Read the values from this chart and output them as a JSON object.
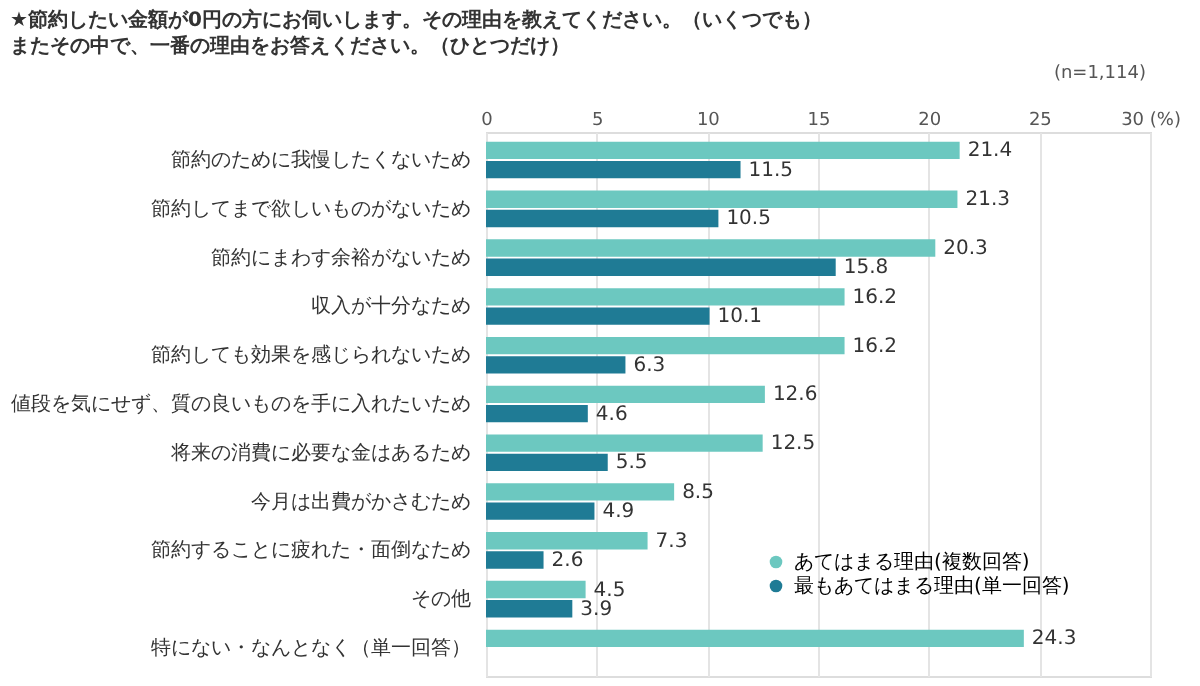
{
  "chart_data": {
    "type": "bar",
    "orientation": "horizontal",
    "title": "★節約したい金額が0円の方にお伺いします。その理由を教えてください。（いくつでも）",
    "subtitle": "またその中で、一番の理由をお答えください。（ひとつだけ）",
    "annotations": [
      "(n=1,114)"
    ],
    "categories": [
      "節約のために我慢したくないため",
      "節約してまで欲しいものがないため",
      "節約にまわす余裕がないため",
      "収入が十分なため",
      "節約しても効果を感じられないため",
      "値段を気にせず、質の良いものを手に入れたいため",
      "将来の消費に必要な金はあるため",
      "今月は出費がかさむため",
      "節約することに疲れた・面倒なため",
      "その他",
      "特にない・なんとなく（単一回答）"
    ],
    "series": [
      {
        "name": "あてはまる理由(複数回答)",
        "color": "#6cc8c0",
        "values": [
          21.4,
          21.3,
          20.3,
          16.2,
          16.2,
          12.6,
          12.5,
          8.5,
          7.3,
          4.5,
          24.3
        ]
      },
      {
        "name": "最もあてはまる理由(単一回答)",
        "color": "#1f7b95",
        "values": [
          11.5,
          10.5,
          15.8,
          10.1,
          6.3,
          4.6,
          5.5,
          4.9,
          2.6,
          3.9,
          null
        ]
      }
    ],
    "xlim": [
      0,
      30
    ],
    "xticks": [
      0,
      5,
      10,
      15,
      20,
      25,
      {
        "value": 30,
        "label": "30 (%)"
      }
    ],
    "grid": "x",
    "legend": "bottom right",
    "data_labels": true
  }
}
